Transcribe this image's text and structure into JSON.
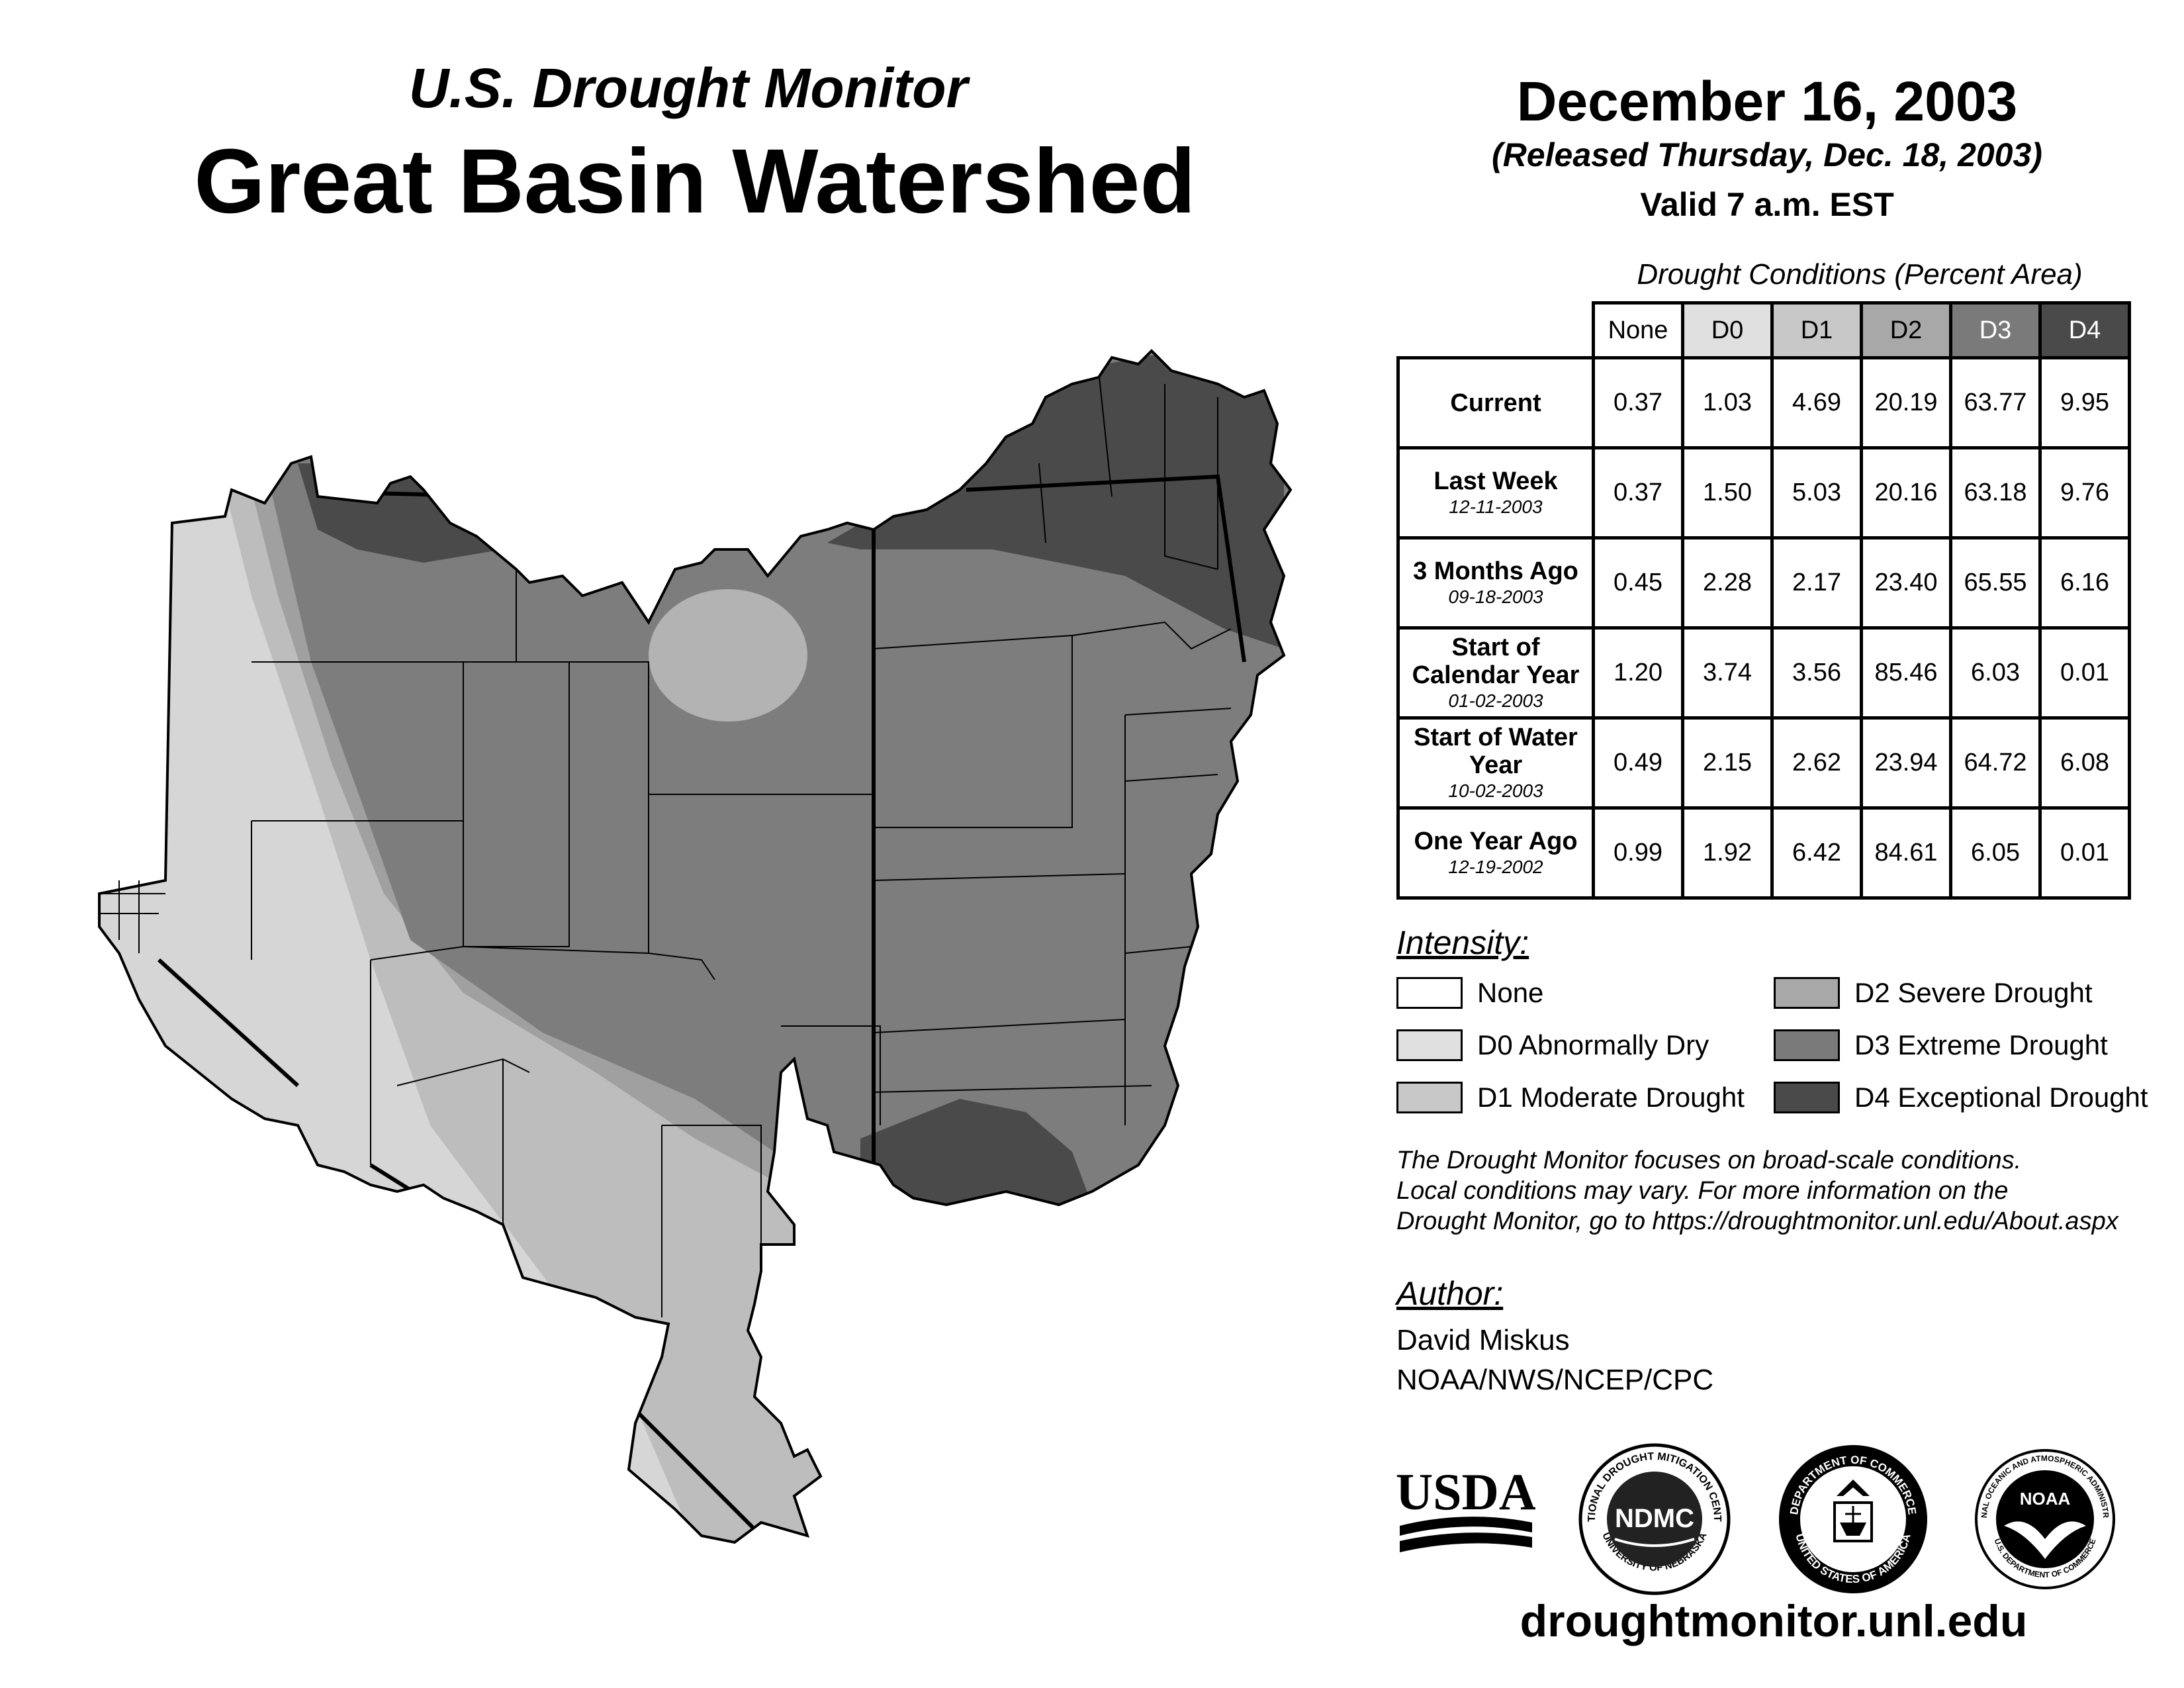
{
  "header": {
    "subtitle": "U.S. Drought Monitor",
    "title": "Great Basin Watershed"
  },
  "date": {
    "main": "December 16, 2003",
    "released": "(Released Thursday, Dec. 18, 2003)",
    "valid": "Valid 7 a.m. EST"
  },
  "table": {
    "caption": "Drought Conditions (Percent Area)",
    "columns": [
      "None",
      "D0",
      "D1",
      "D2",
      "D3",
      "D4"
    ],
    "column_colors": [
      "#ffffff",
      "#e0e0e0",
      "#c8c8c8",
      "#a8a8a8",
      "#7a7a7a",
      "#4a4a4a"
    ],
    "column_text_colors": [
      "#000000",
      "#000000",
      "#000000",
      "#000000",
      "#ffffff",
      "#ffffff"
    ],
    "rows": [
      {
        "label": "Current",
        "date": "",
        "values": [
          "0.37",
          "1.03",
          "4.69",
          "20.19",
          "63.77",
          "9.95"
        ]
      },
      {
        "label": "Last Week",
        "date": "12-11-2003",
        "values": [
          "0.37",
          "1.50",
          "5.03",
          "20.16",
          "63.18",
          "9.76"
        ]
      },
      {
        "label": "3 Months Ago",
        "date": "09-18-2003",
        "values": [
          "0.45",
          "2.28",
          "2.17",
          "23.40",
          "65.55",
          "6.16"
        ]
      },
      {
        "label": "Start of Calendar Year",
        "date": "01-02-2003",
        "values": [
          "1.20",
          "3.74",
          "3.56",
          "85.46",
          "6.03",
          "0.01"
        ]
      },
      {
        "label": "Start of Water Year",
        "date": "10-02-2003",
        "values": [
          "0.49",
          "2.15",
          "2.62",
          "23.94",
          "64.72",
          "6.08"
        ]
      },
      {
        "label": "One Year Ago",
        "date": "12-19-2002",
        "values": [
          "0.99",
          "1.92",
          "6.42",
          "84.61",
          "6.05",
          "0.01"
        ]
      }
    ]
  },
  "legend": {
    "title": "Intensity:",
    "items": [
      {
        "label": "None",
        "color": "#ffffff"
      },
      {
        "label": "D0 Abnormally Dry",
        "color": "#e0e0e0"
      },
      {
        "label": "D1 Moderate Drought",
        "color": "#c8c8c8"
      },
      {
        "label": "D2 Severe Drought",
        "color": "#a8a8a8"
      },
      {
        "label": "D3 Extreme Drought",
        "color": "#7a7a7a"
      },
      {
        "label": "D4 Exceptional Drought",
        "color": "#4a4a4a"
      }
    ]
  },
  "note": {
    "line1": "The Drought Monitor focuses on broad-scale conditions.",
    "line2": "Local conditions may vary. For more information on the",
    "line3": "Drought Monitor, go to https://droughtmonitor.unl.edu/About.aspx"
  },
  "author": {
    "title": "Author:",
    "name": "David Miskus",
    "org": "NOAA/NWS/NCEP/CPC"
  },
  "logos": {
    "usda": "USDA",
    "ndmc": "NDMC",
    "ndmc_top": "NATIONAL DROUGHT MITIGATION CENTER",
    "ndmc_bottom": "UNIVERSITY OF NEBRASKA",
    "doc_top": "DEPARTMENT OF COMMERCE",
    "doc_bottom": "UNITED STATES OF AMERICA",
    "noaa": "NOAA",
    "noaa_ring": "NATIONAL OCEANIC AND ATMOSPHERIC ADMINISTRATION",
    "noaa_bottom": "U.S. DEPARTMENT OF COMMERCE"
  },
  "site_url": "droughtmonitor.unl.edu"
}
